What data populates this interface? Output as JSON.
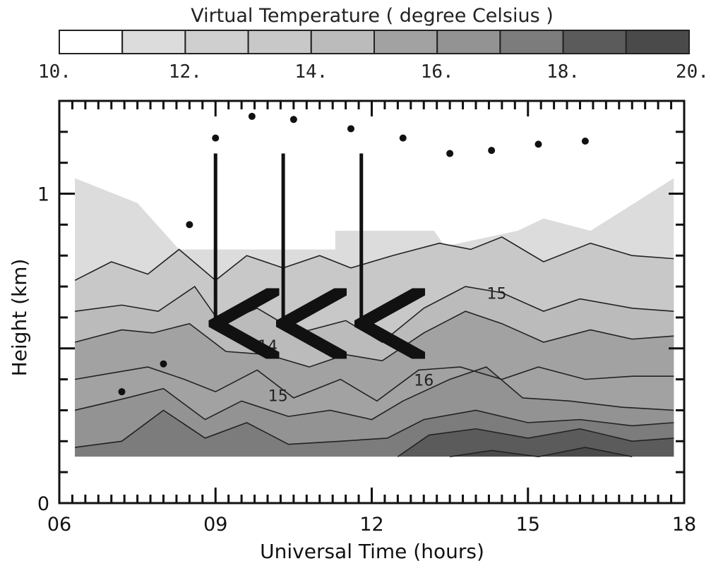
{
  "chart_data": {
    "type": "heatmap",
    "colorbar": {
      "title": "Virtual Temperature   ( degree Celsius )",
      "tick_labels": [
        "10.",
        "12.",
        "14.",
        "16.",
        "18.",
        "20."
      ],
      "range": [
        10,
        20
      ],
      "step": 1,
      "colors": [
        "#ffffff",
        "#dcdcdc",
        "#cfcfcf",
        "#c8c8c8",
        "#bbbbbb",
        "#a2a2a2",
        "#939393",
        "#7c7c7c",
        "#5b5b5b",
        "#4a4a4a"
      ]
    },
    "x_axis": {
      "label": "Universal Time (hours)",
      "range": [
        6,
        18
      ],
      "ticks": [
        6,
        9,
        12,
        15,
        18
      ],
      "tick_labels": [
        "06",
        "09",
        "12",
        "15",
        "18"
      ]
    },
    "y_axis": {
      "label": "Height (km)",
      "range": [
        0,
        1.3
      ],
      "ticks": [
        0,
        1
      ],
      "tick_labels": [
        "0",
        "1"
      ]
    },
    "contour_labels": [
      {
        "text": "14",
        "x": 10.0,
        "y": 0.49
      },
      {
        "text": "15",
        "x": 10.2,
        "y": 0.33
      },
      {
        "text": "16",
        "x": 13.0,
        "y": 0.38
      },
      {
        "text": "15",
        "x": 14.4,
        "y": 0.66
      }
    ],
    "contour_lines": [
      {
        "level": 13,
        "points": [
          [
            6.3,
            0.72
          ],
          [
            7.0,
            0.78
          ],
          [
            7.7,
            0.74
          ],
          [
            8.3,
            0.82
          ],
          [
            9.0,
            0.72
          ],
          [
            9.6,
            0.8
          ],
          [
            10.3,
            0.76
          ],
          [
            11.0,
            0.8
          ],
          [
            11.6,
            0.76
          ],
          [
            12.4,
            0.8
          ],
          [
            13.3,
            0.84
          ],
          [
            13.9,
            0.82
          ],
          [
            14.5,
            0.86
          ],
          [
            15.3,
            0.78
          ],
          [
            16.2,
            0.84
          ],
          [
            17.0,
            0.8
          ],
          [
            17.8,
            0.79
          ]
        ]
      },
      {
        "level": 14,
        "points": [
          [
            6.3,
            0.62
          ],
          [
            7.2,
            0.64
          ],
          [
            7.9,
            0.62
          ],
          [
            8.6,
            0.7
          ],
          [
            9.1,
            0.58
          ],
          [
            9.8,
            0.63
          ],
          [
            10.6,
            0.55
          ],
          [
            11.5,
            0.59
          ],
          [
            12.2,
            0.52
          ],
          [
            13.0,
            0.63
          ],
          [
            13.8,
            0.7
          ],
          [
            14.5,
            0.68
          ],
          [
            15.3,
            0.62
          ],
          [
            16.0,
            0.66
          ],
          [
            17.0,
            0.63
          ],
          [
            17.8,
            0.62
          ]
        ]
      },
      {
        "level": 15,
        "points": [
          [
            6.3,
            0.52
          ],
          [
            7.2,
            0.56
          ],
          [
            7.8,
            0.55
          ],
          [
            8.5,
            0.58
          ],
          [
            9.2,
            0.49
          ],
          [
            10.0,
            0.48
          ],
          [
            10.8,
            0.44
          ],
          [
            11.5,
            0.48
          ],
          [
            12.2,
            0.46
          ],
          [
            13.0,
            0.55
          ],
          [
            13.8,
            0.62
          ],
          [
            14.5,
            0.58
          ],
          [
            15.3,
            0.52
          ],
          [
            16.2,
            0.56
          ],
          [
            17.0,
            0.53
          ],
          [
            17.8,
            0.54
          ]
        ]
      },
      {
        "level": 15.5,
        "points": [
          [
            6.3,
            0.4
          ],
          [
            7.0,
            0.42
          ],
          [
            7.7,
            0.44
          ],
          [
            8.4,
            0.4
          ],
          [
            9.0,
            0.36
          ],
          [
            9.8,
            0.43
          ],
          [
            10.5,
            0.34
          ],
          [
            11.4,
            0.4
          ],
          [
            12.1,
            0.33
          ],
          [
            12.9,
            0.43
          ],
          [
            13.7,
            0.44
          ],
          [
            14.5,
            0.4
          ],
          [
            15.2,
            0.44
          ],
          [
            16.1,
            0.4
          ],
          [
            17.0,
            0.41
          ],
          [
            17.8,
            0.41
          ]
        ]
      },
      {
        "level": 16,
        "points": [
          [
            6.3,
            0.3
          ],
          [
            7.3,
            0.34
          ],
          [
            8.0,
            0.37
          ],
          [
            8.8,
            0.27
          ],
          [
            9.5,
            0.33
          ],
          [
            10.4,
            0.28
          ],
          [
            11.2,
            0.3
          ],
          [
            12.0,
            0.27
          ],
          [
            12.6,
            0.33
          ],
          [
            13.5,
            0.4
          ],
          [
            14.2,
            0.44
          ],
          [
            14.9,
            0.34
          ],
          [
            15.8,
            0.33
          ],
          [
            16.8,
            0.31
          ],
          [
            17.8,
            0.3
          ]
        ]
      },
      {
        "level": 17,
        "points": [
          [
            6.3,
            0.18
          ],
          [
            7.2,
            0.2
          ],
          [
            8.0,
            0.3
          ],
          [
            8.8,
            0.21
          ],
          [
            9.6,
            0.26
          ],
          [
            10.4,
            0.19
          ],
          [
            11.4,
            0.2
          ],
          [
            12.3,
            0.21
          ],
          [
            13.0,
            0.27
          ],
          [
            14.0,
            0.3
          ],
          [
            15.0,
            0.26
          ],
          [
            16.0,
            0.27
          ],
          [
            17.0,
            0.25
          ],
          [
            17.8,
            0.26
          ]
        ]
      },
      {
        "level": 18,
        "points": [
          [
            12.5,
            0.15
          ],
          [
            13.1,
            0.22
          ],
          [
            14.0,
            0.24
          ],
          [
            15.0,
            0.21
          ],
          [
            16.0,
            0.24
          ],
          [
            17.0,
            0.2
          ],
          [
            17.8,
            0.21
          ]
        ]
      },
      {
        "level": 19,
        "points": [
          [
            13.5,
            0.15
          ],
          [
            14.3,
            0.17
          ],
          [
            15.2,
            0.15
          ],
          [
            16.1,
            0.18
          ],
          [
            17.0,
            0.15
          ]
        ]
      }
    ],
    "arrows": [
      {
        "x": 9.0,
        "y_start": 1.13,
        "y_end": 0.58
      },
      {
        "x": 10.3,
        "y_start": 1.13,
        "y_end": 0.58
      },
      {
        "x": 11.8,
        "y_start": 1.13,
        "y_end": 0.58
      }
    ],
    "dots": [
      [
        9.0,
        1.18
      ],
      [
        9.7,
        1.25
      ],
      [
        10.5,
        1.24
      ],
      [
        11.6,
        1.21
      ],
      [
        12.6,
        1.18
      ],
      [
        13.5,
        1.13
      ],
      [
        14.3,
        1.14
      ],
      [
        15.2,
        1.16
      ],
      [
        16.1,
        1.17
      ],
      [
        8.5,
        0.9
      ],
      [
        8.0,
        0.45
      ],
      [
        7.2,
        0.36
      ]
    ]
  }
}
